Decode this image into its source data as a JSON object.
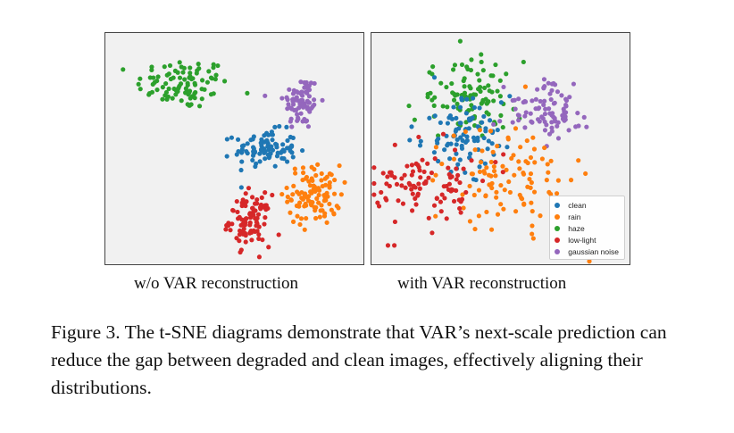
{
  "figure": {
    "caption": "Figure 3. The t-SNE diagrams demonstrate that VAR’s next-scale prediction can reduce the gap between degraded and clean images, effectively aligning their distributions."
  },
  "colors": {
    "clean": "#1f77b4",
    "rain": "#ff7f0e",
    "haze": "#2ca02c",
    "low-light": "#d62728",
    "gaussian noise": "#9467bd",
    "panel_bg": "#f1f1f1"
  },
  "chart_data": [
    {
      "type": "scatter",
      "title": "w/o VAR reconstruction",
      "xlim": [
        0,
        100
      ],
      "ylim": [
        0,
        100
      ],
      "grid": false,
      "legend": null,
      "note": "t-SNE embedding; axes unlabeled. Values are estimated cluster centers and spreads.",
      "clusters": [
        {
          "name": "haze",
          "center": [
            30,
            78
          ],
          "spread": [
            9,
            5.5
          ],
          "count": 95
        },
        {
          "name": "gaussian noise",
          "center": [
            76,
            70
          ],
          "spread": [
            3.5,
            6
          ],
          "count": 80
        },
        {
          "name": "clean",
          "center": [
            62,
            50
          ],
          "spread": [
            6,
            4
          ],
          "count": 95
        },
        {
          "name": "rain",
          "center": [
            81,
            30
          ],
          "spread": [
            5,
            6.5
          ],
          "count": 105
        },
        {
          "name": "low-light",
          "center": [
            56,
            19
          ],
          "spread": [
            4,
            5.5
          ],
          "count": 95
        }
      ]
    },
    {
      "type": "scatter",
      "title": "with VAR reconstruction",
      "xlim": [
        0,
        100
      ],
      "ylim": [
        0,
        100
      ],
      "grid": false,
      "legend": "bottom-right",
      "legend_labels": [
        "clean",
        "rain",
        "haze",
        "low-light",
        "gaussian noise"
      ],
      "note": "t-SNE embedding; axes unlabeled. Values are estimated cluster centers and spreads.",
      "clusters": [
        {
          "name": "haze",
          "center": [
            37,
            72
          ],
          "spread": [
            10,
            8
          ],
          "count": 100
        },
        {
          "name": "clean",
          "center": [
            36,
            56
          ],
          "spread": [
            9,
            8
          ],
          "count": 95
        },
        {
          "name": "gaussian noise",
          "center": [
            68,
            66
          ],
          "spread": [
            8,
            6
          ],
          "count": 90
        },
        {
          "name": "rain",
          "center": [
            52,
            38
          ],
          "spread": [
            12,
            11
          ],
          "count": 105
        },
        {
          "name": "low-light",
          "center": [
            22,
            34
          ],
          "spread": [
            11,
            9
          ],
          "count": 100
        }
      ]
    }
  ]
}
